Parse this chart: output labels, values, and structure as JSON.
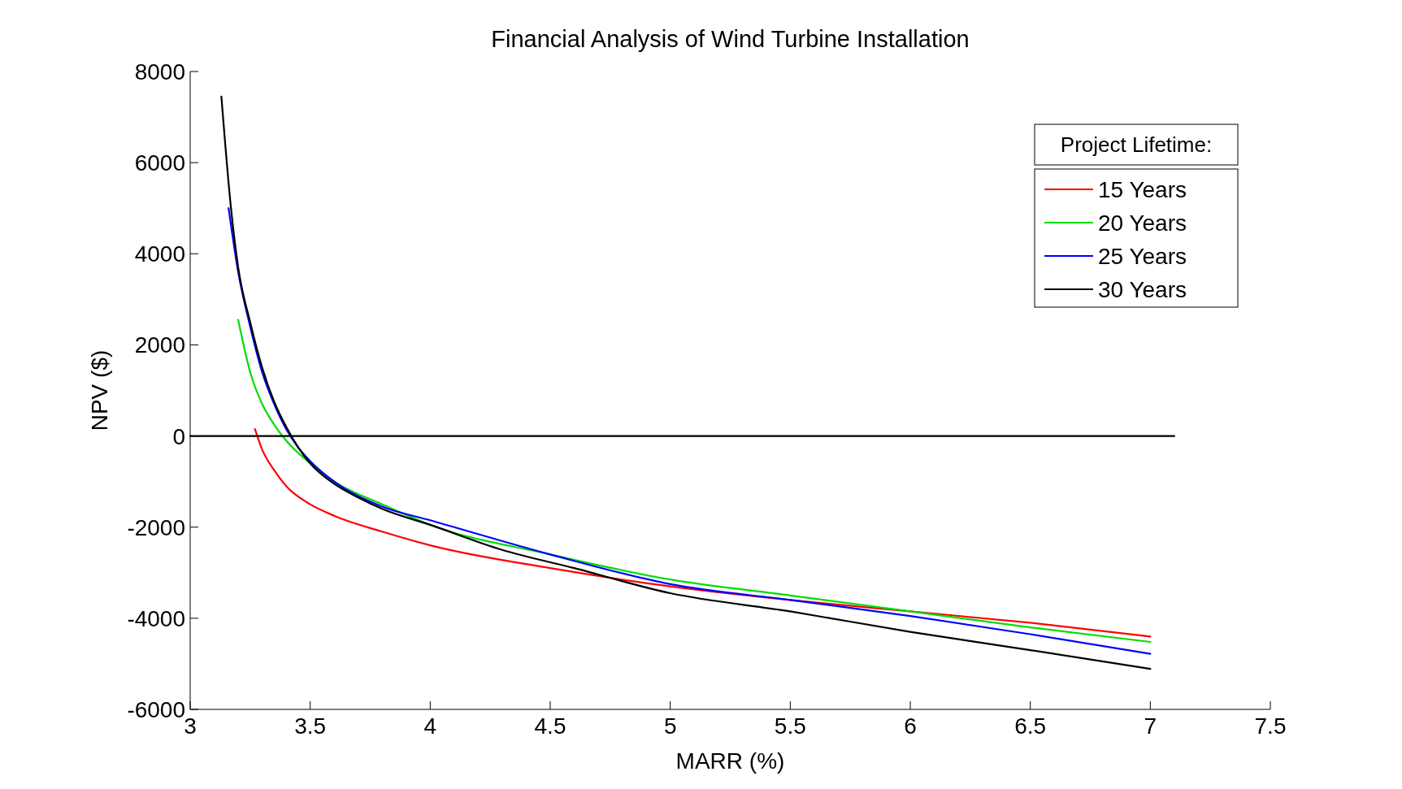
{
  "chart_data": {
    "type": "line",
    "title": "Financial Analysis of Wind Turbine Installation",
    "xlabel": "MARR (%)",
    "ylabel": "NPV ($)",
    "legend_title": "Project Lifetime:",
    "legend": "top right",
    "grid": false,
    "line_style": "solid",
    "xlim": [
      3,
      7.5
    ],
    "xticks": [
      3,
      3.5,
      4,
      4.5,
      5,
      5.5,
      6,
      6.5,
      7,
      7.5
    ],
    "ylim": [
      -6000,
      8000
    ],
    "yticks": [
      -6000,
      -4000,
      -2000,
      0,
      2000,
      4000,
      6000,
      8000
    ],
    "series": [
      {
        "name": "15 Years",
        "color": "#ff0000",
        "x": [
          3.27,
          3.3,
          3.35,
          3.4,
          3.5,
          3.6,
          3.8,
          4.0,
          4.5,
          5.0,
          5.5,
          6.0,
          6.5,
          7.0
        ],
        "values": [
          150,
          -300,
          -750,
          -1100,
          -1500,
          -1750,
          -2100,
          -2400,
          -2900,
          -3300,
          -3600,
          -3850,
          -4100,
          -4400
        ]
      },
      {
        "name": "20 Years",
        "color": "#00dd00",
        "x": [
          3.2,
          3.25,
          3.3,
          3.35,
          3.4,
          3.5,
          3.6,
          3.8,
          4.0,
          4.5,
          5.0,
          5.5,
          6.0,
          6.5,
          7.0
        ],
        "values": [
          2550,
          1400,
          700,
          250,
          -100,
          -600,
          -1000,
          -1500,
          -1950,
          -2600,
          -3150,
          -3500,
          -3850,
          -4200,
          -4520
        ]
      },
      {
        "name": "25 Years",
        "color": "#0000ff",
        "x": [
          3.16,
          3.2,
          3.25,
          3.3,
          3.35,
          3.4,
          3.45,
          3.5,
          3.6,
          3.8,
          4.0,
          4.5,
          5.0,
          5.5,
          6.0,
          6.5,
          7.0
        ],
        "values": [
          5000,
          3600,
          2400,
          1400,
          700,
          150,
          -250,
          -550,
          -1000,
          -1550,
          -1850,
          -2600,
          -3250,
          -3600,
          -3950,
          -4350,
          -4780
        ]
      },
      {
        "name": "30 Years",
        "color": "#000000",
        "x": [
          3.13,
          3.17,
          3.2,
          3.25,
          3.3,
          3.35,
          3.4,
          3.45,
          3.5,
          3.6,
          3.7,
          3.8,
          4.0,
          4.3,
          4.6,
          5.0,
          5.5,
          6.0,
          6.5,
          7.0
        ],
        "values": [
          7450,
          5000,
          3700,
          2500,
          1500,
          750,
          200,
          -250,
          -600,
          -1050,
          -1350,
          -1600,
          -1950,
          -2500,
          -2900,
          -3450,
          -3850,
          -4300,
          -4700,
          -5110
        ]
      },
      {
        "color": "#000000",
        "x": [
          3,
          7.1
        ],
        "values": [
          0,
          0
        ]
      }
    ]
  }
}
